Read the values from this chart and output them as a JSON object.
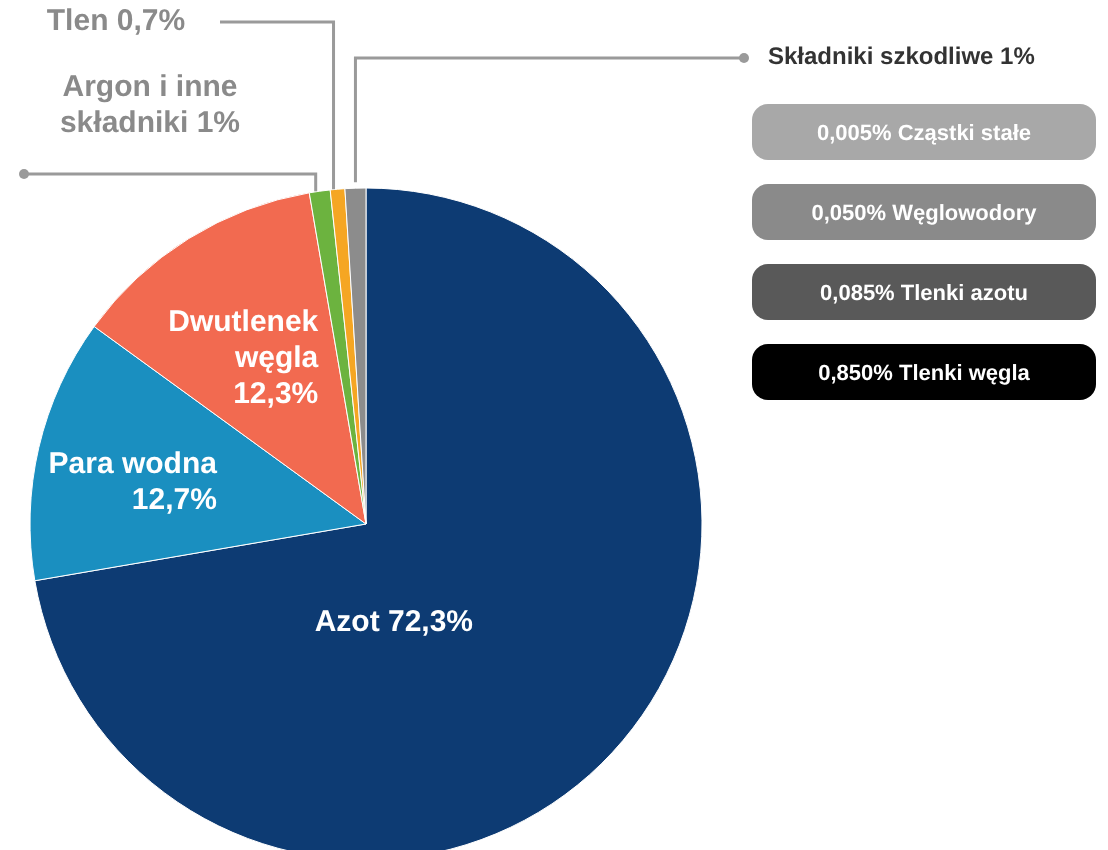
{
  "chart_data": {
    "type": "pie",
    "categories": [
      "Azot",
      "Para wodna",
      "Dwutlenek węgla",
      "Argon i inne składniki",
      "Tlen",
      "Składniki szkodliwe"
    ],
    "values": [
      72.3,
      12.7,
      12.3,
      1,
      0.7,
      1
    ],
    "value_labels": [
      "72,3%",
      "12,7%",
      "12,3%",
      "1%",
      "0,7%",
      "1%"
    ],
    "colors": [
      "#0d3b73",
      "#1a8fc0",
      "#f26a50",
      "#6cb33f",
      "#f5a623",
      "#8c8c8c"
    ],
    "annotations": [
      "0,005% Cząstki stałe",
      "0,050% Węglowodory",
      "0,085% Tlenki azotu",
      "0,850% Tlenki węgla"
    ]
  }
}
